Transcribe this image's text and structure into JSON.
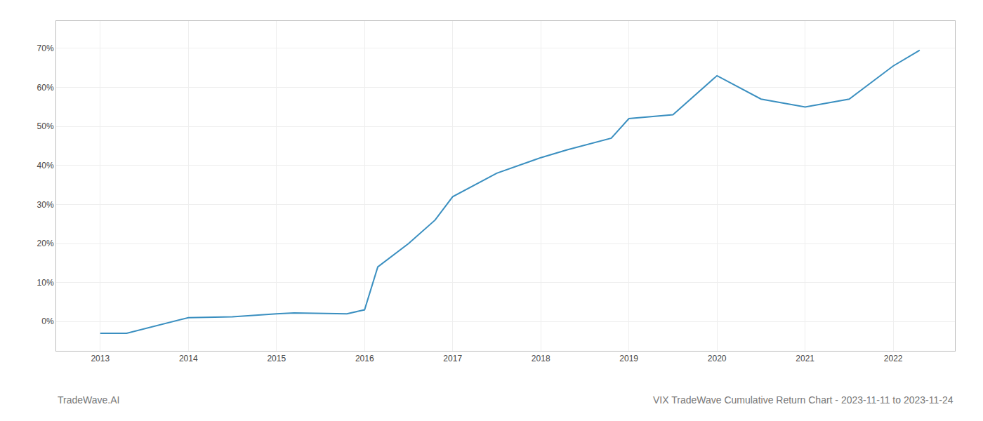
{
  "chart_data": {
    "type": "line",
    "title": "VIX TradeWave Cumulative Return Chart - 2023-11-11 to 2023-11-24",
    "annotations": [
      "TradeWave.AI"
    ],
    "x": [
      2013,
      2013.3,
      2014,
      2014.5,
      2015,
      2015.2,
      2015.8,
      2016,
      2016.15,
      2016.5,
      2016.8,
      2017,
      2017.5,
      2018,
      2018.3,
      2018.8,
      2019,
      2019.5,
      2020,
      2020.5,
      2021,
      2021.5,
      2022,
      2022.3
    ],
    "values": [
      -0.03,
      -0.03,
      0.01,
      0.012,
      0.02,
      0.022,
      0.02,
      0.03,
      0.14,
      0.2,
      0.26,
      0.32,
      0.38,
      0.42,
      0.44,
      0.47,
      0.52,
      0.53,
      0.63,
      0.57,
      0.55,
      0.57,
      0.655,
      0.695
    ],
    "color": "#3a8fc0",
    "grid": true,
    "xlim": [
      2012.5,
      2022.7
    ],
    "xticks": [
      2013,
      2014,
      2015,
      2016,
      2017,
      2018,
      2019,
      2020,
      2021,
      2022
    ],
    "ylim": [
      -0.075,
      0.77
    ],
    "yticks": [
      {
        "value": 0.0,
        "label": "0%"
      },
      {
        "value": 0.1,
        "label": "10%"
      },
      {
        "value": 0.2,
        "label": "20%"
      },
      {
        "value": 0.3,
        "label": "30%"
      },
      {
        "value": 0.4,
        "label": "40%"
      },
      {
        "value": 0.5,
        "label": "50%"
      },
      {
        "value": 0.6,
        "label": "60%"
      },
      {
        "value": 0.7,
        "label": "70%"
      }
    ]
  }
}
